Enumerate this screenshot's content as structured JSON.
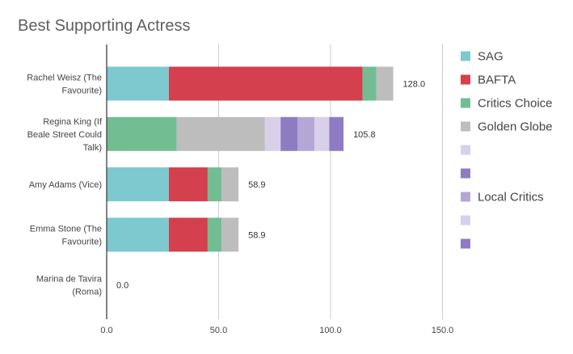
{
  "chart_data": {
    "type": "bar",
    "orientation": "horizontal",
    "stacked": true,
    "title": "Best Supporting Actress",
    "xlabel": "",
    "ylabel": "",
    "xlim": [
      0,
      150
    ],
    "x_ticks": [
      "0.0",
      "50.0",
      "100.0",
      "150.0"
    ],
    "x_tick_values": [
      0,
      50,
      100,
      150
    ],
    "grid": true,
    "legend_position": "right",
    "categories": [
      [
        "Rachel Weisz (The",
        "Favourite)"
      ],
      [
        "Regina King (If",
        "Beale Street Could",
        "Talk)"
      ],
      [
        "Amy Adams (Vice)"
      ],
      [
        "Emma Stone (The",
        "Favourite)"
      ],
      [
        "Marina de Tavira",
        "(Roma)"
      ]
    ],
    "totals": [
      "128.0",
      "105.8",
      "58.9",
      "58.9",
      "0.0"
    ],
    "total_values": [
      128.0,
      105.8,
      58.9,
      58.9,
      0.0
    ],
    "series": [
      {
        "name": "SAG",
        "color": "#7ec8cf",
        "values": [
          27.8,
          0,
          27.8,
          27.8,
          0
        ]
      },
      {
        "name": "BAFTA",
        "color": "#d4404d",
        "values": [
          86.5,
          0,
          17.3,
          17.3,
          0
        ]
      },
      {
        "name": "Critics Choice",
        "color": "#73bd93",
        "values": [
          6.2,
          31.3,
          6.2,
          6.2,
          0
        ]
      },
      {
        "name": "Golden Globe",
        "color": "#bdbdbd",
        "values": [
          7.5,
          39.4,
          7.6,
          7.6,
          0
        ]
      },
      {
        "name": "",
        "color": "#d8d0e8",
        "values": [
          0,
          7.0,
          0,
          0,
          0
        ]
      },
      {
        "name": "",
        "color": "#8e7cc3",
        "values": [
          0,
          7.5,
          0,
          0,
          0
        ]
      },
      {
        "name": "Local Critics",
        "color": "#b4a7d6",
        "values": [
          0,
          7.6,
          0,
          0,
          0
        ]
      },
      {
        "name": "",
        "color": "#d8d0e8",
        "values": [
          0,
          6.6,
          0,
          0,
          0
        ]
      },
      {
        "name": "",
        "color": "#8e7cc3",
        "values": [
          0,
          6.4,
          0,
          0,
          0
        ]
      }
    ]
  }
}
